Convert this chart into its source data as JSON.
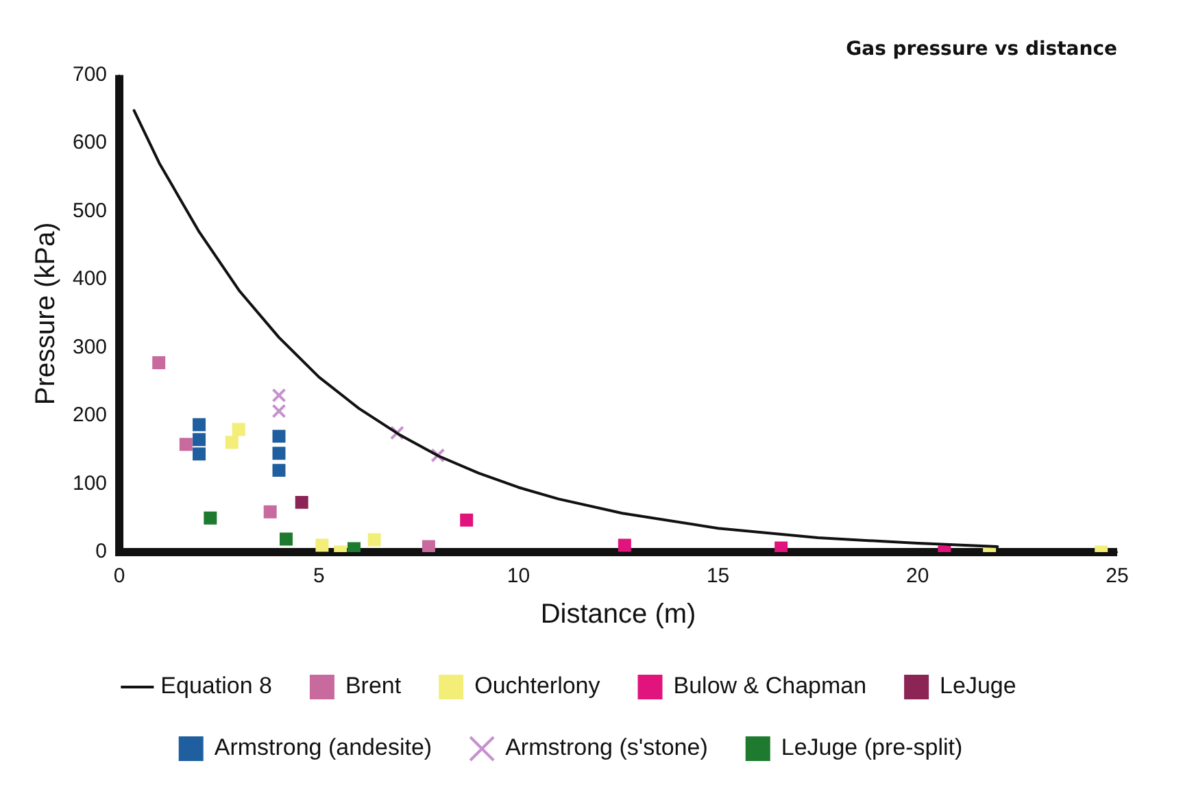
{
  "chart_data": {
    "type": "scatter",
    "title": "Gas pressure vs distance",
    "xlabel": "Distance (m)",
    "ylabel": "Pressure (kPa)",
    "xlim": [
      0,
      25
    ],
    "xticks": [
      0,
      5,
      10,
      15,
      20,
      25
    ],
    "ylim": [
      0,
      700
    ],
    "yticks": [
      0,
      100,
      200,
      300,
      400,
      500,
      600,
      700
    ],
    "grid": false,
    "legend": "bottom",
    "marker": "square",
    "series": [
      {
        "name": "Equation 8",
        "type": "line",
        "color": "#111111",
        "marker": "none",
        "x": [
          0.37,
          1,
          2,
          3,
          4,
          5,
          6,
          7,
          8,
          9,
          10,
          11,
          12.6,
          15,
          17.5,
          20,
          22
        ],
        "values": [
          648,
          571,
          470,
          384,
          315,
          257,
          211,
          173,
          141,
          116,
          95,
          78,
          57,
          35,
          21,
          13,
          8
        ]
      },
      {
        "name": "Brent",
        "color": "#c86a9e",
        "x": [
          0.99,
          1.67,
          3.78,
          7.75
        ],
        "values": [
          278,
          158,
          59,
          8
        ]
      },
      {
        "name": "Ouchterlony",
        "color": "#f2ee78",
        "x": [
          2.82,
          2.99,
          5.08,
          5.54,
          6.39,
          21.8,
          24.6
        ],
        "values": [
          161,
          180,
          10,
          0,
          18,
          0,
          0
        ]
      },
      {
        "name": "Bulow & Chapman",
        "color": "#e0147c",
        "x": [
          8.7,
          12.66,
          16.58,
          20.67
        ],
        "values": [
          47,
          10,
          6,
          0
        ]
      },
      {
        "name": "LeJuge",
        "color": "#8c2456",
        "x": [
          4.57
        ],
        "values": [
          73
        ]
      },
      {
        "name": "Armstrong (andesite)",
        "color": "#1f5fa0",
        "x": [
          2.0,
          2.0,
          2.0,
          4.0,
          4.0,
          4.0
        ],
        "values": [
          187,
          165,
          144,
          170,
          145,
          120
        ]
      },
      {
        "name": "Armstrong (s'stone)",
        "color": "#c890d0",
        "marker": "cross",
        "x": [
          4.0,
          4.0,
          6.96,
          7.98
        ],
        "values": [
          230,
          207,
          175,
          142
        ]
      },
      {
        "name": "LeJuge (pre-split)",
        "color": "#1e7a2e",
        "x": [
          2.28,
          4.18,
          5.88
        ],
        "values": [
          50,
          19,
          5
        ]
      }
    ]
  }
}
